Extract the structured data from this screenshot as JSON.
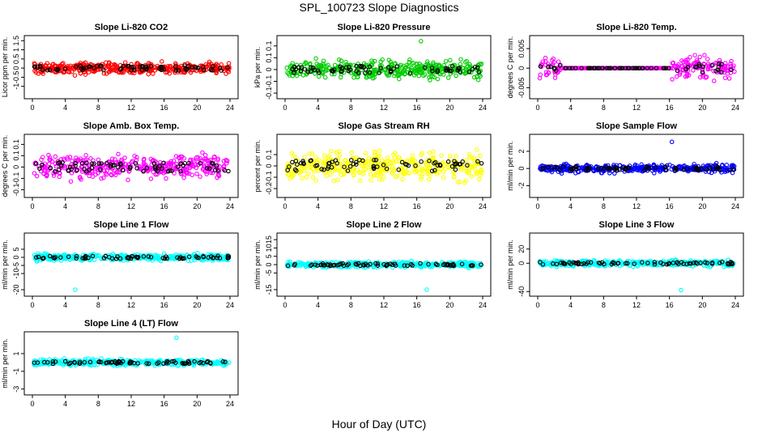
{
  "title": "SPL_100723  Slope Diagnostics",
  "xlabel": "Hour of Day (UTC)",
  "chart_data": [
    {
      "type": "scatter",
      "title": "Slope Li-820 CO2",
      "ylabel": "Licor ppm per min.",
      "xlim": [
        0,
        24
      ],
      "ylim": [
        -1.5,
        1.6
      ],
      "xticks": [
        0,
        4,
        8,
        12,
        16,
        20,
        24
      ],
      "yticks": [
        -1.0,
        -0.5,
        0.0,
        0.5,
        1.0,
        1.5
      ],
      "amplitude": 0.45,
      "spike": null,
      "series": [
        {
          "values_ref": "highlight",
          "color": "#ff0000"
        },
        {
          "values_ref": "dark",
          "color": "#000000"
        }
      ]
    },
    {
      "type": "scatter",
      "title": "Slope Li-820 Pressure",
      "ylabel": "kPa per min.",
      "xlim": [
        0,
        24
      ],
      "ylim": [
        -0.11,
        0.13
      ],
      "xticks": [
        0,
        4,
        8,
        12,
        16,
        20,
        24
      ],
      "yticks": [
        -0.1,
        -0.05,
        0.0,
        0.05,
        0.1
      ],
      "amplitude": 0.05,
      "spike": [
        16.5,
        0.12
      ],
      "series": [
        {
          "values_ref": "highlight",
          "color": "#00cc00"
        },
        {
          "values_ref": "dark",
          "color": "#000000"
        }
      ]
    },
    {
      "type": "scatter",
      "title": "Slope Li-820 Temp.",
      "ylabel": "degrees C per min.",
      "xlim": [
        0,
        24
      ],
      "ylim": [
        -0.007,
        0.0075
      ],
      "xticks": [
        0,
        4,
        8,
        12,
        16,
        20,
        24
      ],
      "yticks": [
        -0.005,
        0.0,
        0.005
      ],
      "amplitude": 0.004,
      "flat_range": [
        3,
        16.2
      ],
      "spike": null,
      "series": [
        {
          "values_ref": "highlight",
          "color": "#ff00ff"
        },
        {
          "values_ref": "dark",
          "color": "#000000"
        }
      ]
    },
    {
      "type": "scatter",
      "title": "Slope Amb. Box Temp.",
      "ylabel": "degrees C per min.",
      "xlim": [
        0,
        24
      ],
      "ylim": [
        -0.12,
        0.13
      ],
      "xticks": [
        0,
        4,
        8,
        12,
        16,
        20,
        24
      ],
      "yticks": [
        -0.1,
        -0.05,
        0.0,
        0.05,
        0.1
      ],
      "amplitude": 0.07,
      "spike": null,
      "series": [
        {
          "values_ref": "highlight",
          "color": "#ff00ff"
        },
        {
          "values_ref": "dark",
          "color": "#000000"
        }
      ]
    },
    {
      "type": "scatter",
      "title": "Slope Gas Stream RH",
      "ylabel": "percent per min.",
      "xlim": [
        0,
        24
      ],
      "ylim": [
        -0.25,
        0.25
      ],
      "xticks": [
        0,
        4,
        8,
        12,
        16,
        20,
        24
      ],
      "yticks": [
        -0.2,
        -0.1,
        0.0,
        0.1
      ],
      "amplitude": 0.18,
      "spike": null,
      "series": [
        {
          "values_ref": "highlight",
          "color": "#ffff00"
        },
        {
          "values_ref": "dark",
          "color": "#000000"
        }
      ]
    },
    {
      "type": "scatter",
      "title": "Slope Sample Flow",
      "ylabel": "ml/min per min.",
      "xlim": [
        0,
        24
      ],
      "ylim": [
        -3,
        3.6
      ],
      "xticks": [
        0,
        4,
        8,
        12,
        16,
        20,
        24
      ],
      "yticks": [
        -2,
        0,
        2
      ],
      "amplitude": 0.7,
      "spike": [
        16.3,
        3.1
      ],
      "series": [
        {
          "values_ref": "highlight",
          "color": "#0000ff"
        },
        {
          "values_ref": "dark",
          "color": "#000000"
        }
      ]
    },
    {
      "type": "scatter",
      "title": "Slope Line 1 Flow",
      "ylabel": "ml/min per min.",
      "xlim": [
        0,
        24
      ],
      "ylim": [
        -22,
        13
      ],
      "xticks": [
        0,
        4,
        8,
        12,
        16,
        20,
        24
      ],
      "yticks": [
        -20,
        -10,
        -5,
        0,
        5
      ],
      "amplitude": 3,
      "spike": [
        5.2,
        -20
      ],
      "series": [
        {
          "values_ref": "highlight",
          "color": "#00ffff"
        },
        {
          "values_ref": "dark",
          "color": "#000000"
        }
      ]
    },
    {
      "type": "scatter",
      "title": "Slope Line 2 Flow",
      "ylabel": "ml/min per min.",
      "xlim": [
        0,
        24
      ],
      "ylim": [
        -17,
        17
      ],
      "xticks": [
        0,
        4,
        8,
        12,
        16,
        20,
        24
      ],
      "yticks": [
        -15,
        -5,
        0,
        5,
        10,
        15
      ],
      "amplitude": 2.5,
      "spike": [
        17.2,
        -15
      ],
      "series": [
        {
          "values_ref": "highlight",
          "color": "#00ffff"
        },
        {
          "values_ref": "dark",
          "color": "#000000"
        }
      ]
    },
    {
      "type": "scatter",
      "title": "Slope Line 3 Flow",
      "ylabel": "ml/min per min.",
      "xlim": [
        0,
        24
      ],
      "ylim": [
        -42,
        38
      ],
      "xticks": [
        0,
        4,
        8,
        12,
        16,
        20,
        24
      ],
      "yticks": [
        -40,
        0,
        20
      ],
      "amplitude": 6,
      "spike": [
        17.4,
        -38
      ],
      "series": [
        {
          "values_ref": "highlight",
          "color": "#00ffff"
        },
        {
          "values_ref": "dark",
          "color": "#000000"
        }
      ]
    },
    {
      "type": "scatter",
      "title": "Slope Line 4 (LT) Flow",
      "ylabel": "ml/min per min.",
      "xlim": [
        0,
        24
      ],
      "ylim": [
        -3.3,
        3.1
      ],
      "xticks": [
        0,
        4,
        8,
        12,
        16,
        20,
        24
      ],
      "yticks": [
        -3,
        -1,
        1
      ],
      "amplitude": 0.5,
      "spike": [
        17.5,
        2.8
      ],
      "series": [
        {
          "values_ref": "highlight",
          "color": "#00ffff"
        },
        {
          "values_ref": "dark",
          "color": "#000000"
        }
      ]
    }
  ]
}
